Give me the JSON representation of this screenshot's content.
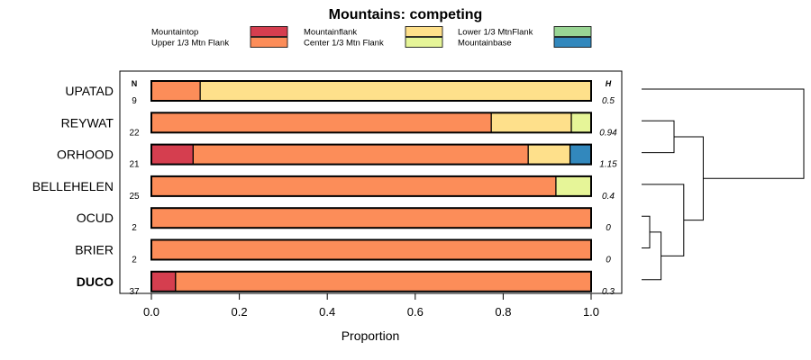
{
  "chart_data": {
    "type": "bar",
    "stacked": true,
    "orientation": "horizontal",
    "title": "Mountains: competing",
    "xlabel": "Proportion",
    "xlim": [
      0,
      1
    ],
    "xticks": [
      "0.0",
      "0.2",
      "0.4",
      "0.6",
      "0.8",
      "1.0"
    ],
    "n_header": "N",
    "h_header": "H",
    "legend_position": "top",
    "legend": [
      {
        "label": "Mountaintop",
        "color": "#d53e4f"
      },
      {
        "label": "Upper 1/3 Mtn Flank",
        "color": "#fc8d59"
      },
      {
        "label": "Mountainflank",
        "color": "#fee08b"
      },
      {
        "label": "Center 1/3 Mtn Flank",
        "color": "#e6f598"
      },
      {
        "label": "Lower 1/3 MtnFlank",
        "color": "#99d594"
      },
      {
        "label": "Mountainbase",
        "color": "#3288bd"
      }
    ],
    "categories": [
      "UPATAD",
      "REYWAT",
      "ORHOOD",
      "BELLEHELEN",
      "OCUD",
      "BRIER",
      "DUCO"
    ],
    "highlighted_category": "DUCO",
    "n": [
      "9",
      "22",
      "21",
      "25",
      "2",
      "2",
      "37"
    ],
    "h": [
      "0.5",
      "0.94",
      "1.15",
      "0.4",
      "0",
      "0",
      "0.3"
    ],
    "series": [
      {
        "name": "Mountaintop",
        "values": [
          0,
          0,
          0.095,
          0,
          0,
          0,
          0.055
        ]
      },
      {
        "name": "Upper 1/3 Mtn Flank",
        "values": [
          0.111,
          0.773,
          0.762,
          0.92,
          1.0,
          1.0,
          0.945
        ]
      },
      {
        "name": "Mountainflank",
        "values": [
          0.889,
          0.182,
          0.095,
          0,
          0,
          0,
          0
        ]
      },
      {
        "name": "Center 1/3 Mtn Flank",
        "values": [
          0,
          0.045,
          0,
          0.08,
          0,
          0,
          0
        ]
      },
      {
        "name": "Lower 1/3 MtnFlank",
        "values": [
          0,
          0,
          0,
          0,
          0,
          0,
          0
        ]
      },
      {
        "name": "Mountainbase",
        "values": [
          0,
          0,
          0.048,
          0,
          0,
          0,
          0
        ]
      }
    ],
    "dendrogram": {
      "merges": [
        {
          "a": "OCUD",
          "b": "BRIER",
          "height": 0.05
        },
        {
          "a": "OCUD+BRIER",
          "b": "DUCO",
          "height": 0.12
        },
        {
          "a": "REYWAT",
          "b": "ORHOOD",
          "height": 0.2
        },
        {
          "a": "OCUD+BRIER+DUCO",
          "b": "BELLEHELEN",
          "height": 0.26
        },
        {
          "a": "REYWAT+ORHOOD",
          "b": "BELLEHELEN+OCUD+BRIER+DUCO",
          "height": 0.38
        },
        {
          "a": "UPATAD",
          "b": "REST",
          "height": 1.0
        }
      ]
    }
  }
}
